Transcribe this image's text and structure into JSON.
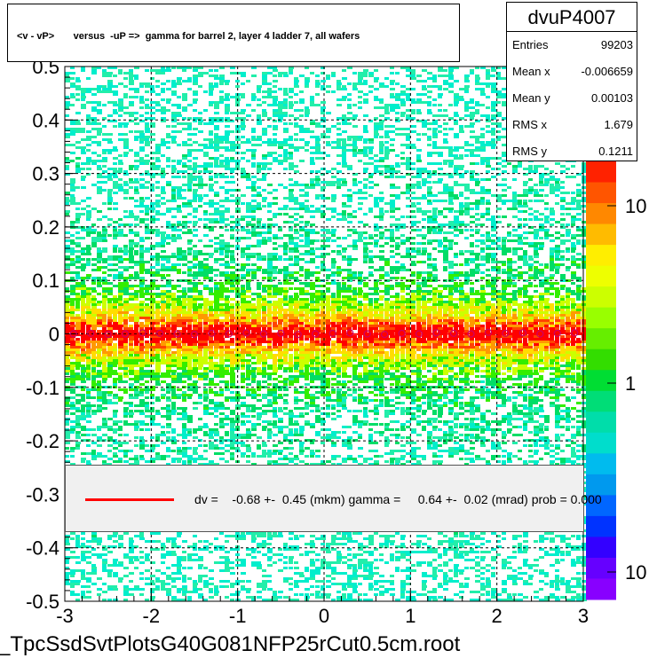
{
  "title": "<v - vP>       versus  -uP =>  gamma for barrel 2, layer 4 ladder 7, all wafers",
  "stats": {
    "name": "dvuP4007",
    "rows": [
      {
        "label": "Entries",
        "value": "99203"
      },
      {
        "label": "Mean x",
        "value": "-0.006659"
      },
      {
        "label": "Mean y",
        "value": "0.00103"
      },
      {
        "label": "RMS x",
        "value": "1.679"
      },
      {
        "label": "RMS y",
        "value": "0.1211"
      }
    ]
  },
  "legend": {
    "text": "dv =    -0.68 +-  0.45 (mkm) gamma =     0.64 +-  0.02 (mrad) prob = 0.000",
    "line_color": "#ff0000"
  },
  "footer": "_TpcSsdSvtPlotsG40G081NFP25rCut0.5cm.root",
  "chart_data": {
    "type": "heatmap",
    "title": "<v - vP>       versus  -uP =>  gamma for barrel 2, layer 4 ladder 7, all wafers",
    "xlim": [
      -3,
      3
    ],
    "ylim": [
      -0.5,
      0.5
    ],
    "x_ticks": [
      "-3",
      "-2",
      "-1",
      "0",
      "1",
      "2",
      "3"
    ],
    "y_ticks": [
      "-0.5",
      "-0.4",
      "-0.3",
      "-0.2",
      "-0.1",
      "0",
      "0.1",
      "0.2",
      "0.3",
      "0.4",
      "0.5"
    ],
    "color_scale": "log",
    "color_ticks": [
      "10",
      "1",
      "10"
    ],
    "grid": true,
    "profile_points": {
      "x": [
        -2.9,
        -2.7,
        -2.5,
        -2.3,
        -2.1,
        -1.9,
        -1.7,
        -1.5,
        -1.3,
        -1.1,
        -0.9,
        -0.7,
        -0.5,
        -0.3,
        -0.1,
        0.1,
        0.3,
        0.5,
        0.7,
        0.9,
        1.1,
        1.3,
        1.5,
        1.7,
        1.9,
        2.1,
        2.3,
        2.5,
        2.7,
        2.9
      ],
      "y": [
        0.0,
        0.001,
        -0.001,
        0.0,
        0.002,
        0.001,
        0.0,
        -0.001,
        0.001,
        0.0,
        0.002,
        0.0,
        0.001,
        -0.001,
        0.0,
        0.001,
        0.002,
        0.0,
        -0.001,
        0.001,
        0.0,
        0.002,
        0.001,
        0.0,
        0.003,
        0.001,
        0.002,
        0.0,
        0.001,
        0.002
      ]
    },
    "fit_line": {
      "color": "#ff0000",
      "slope": 0.00064,
      "intercept": -0.00068
    },
    "stats_name": "dvuP4007"
  }
}
